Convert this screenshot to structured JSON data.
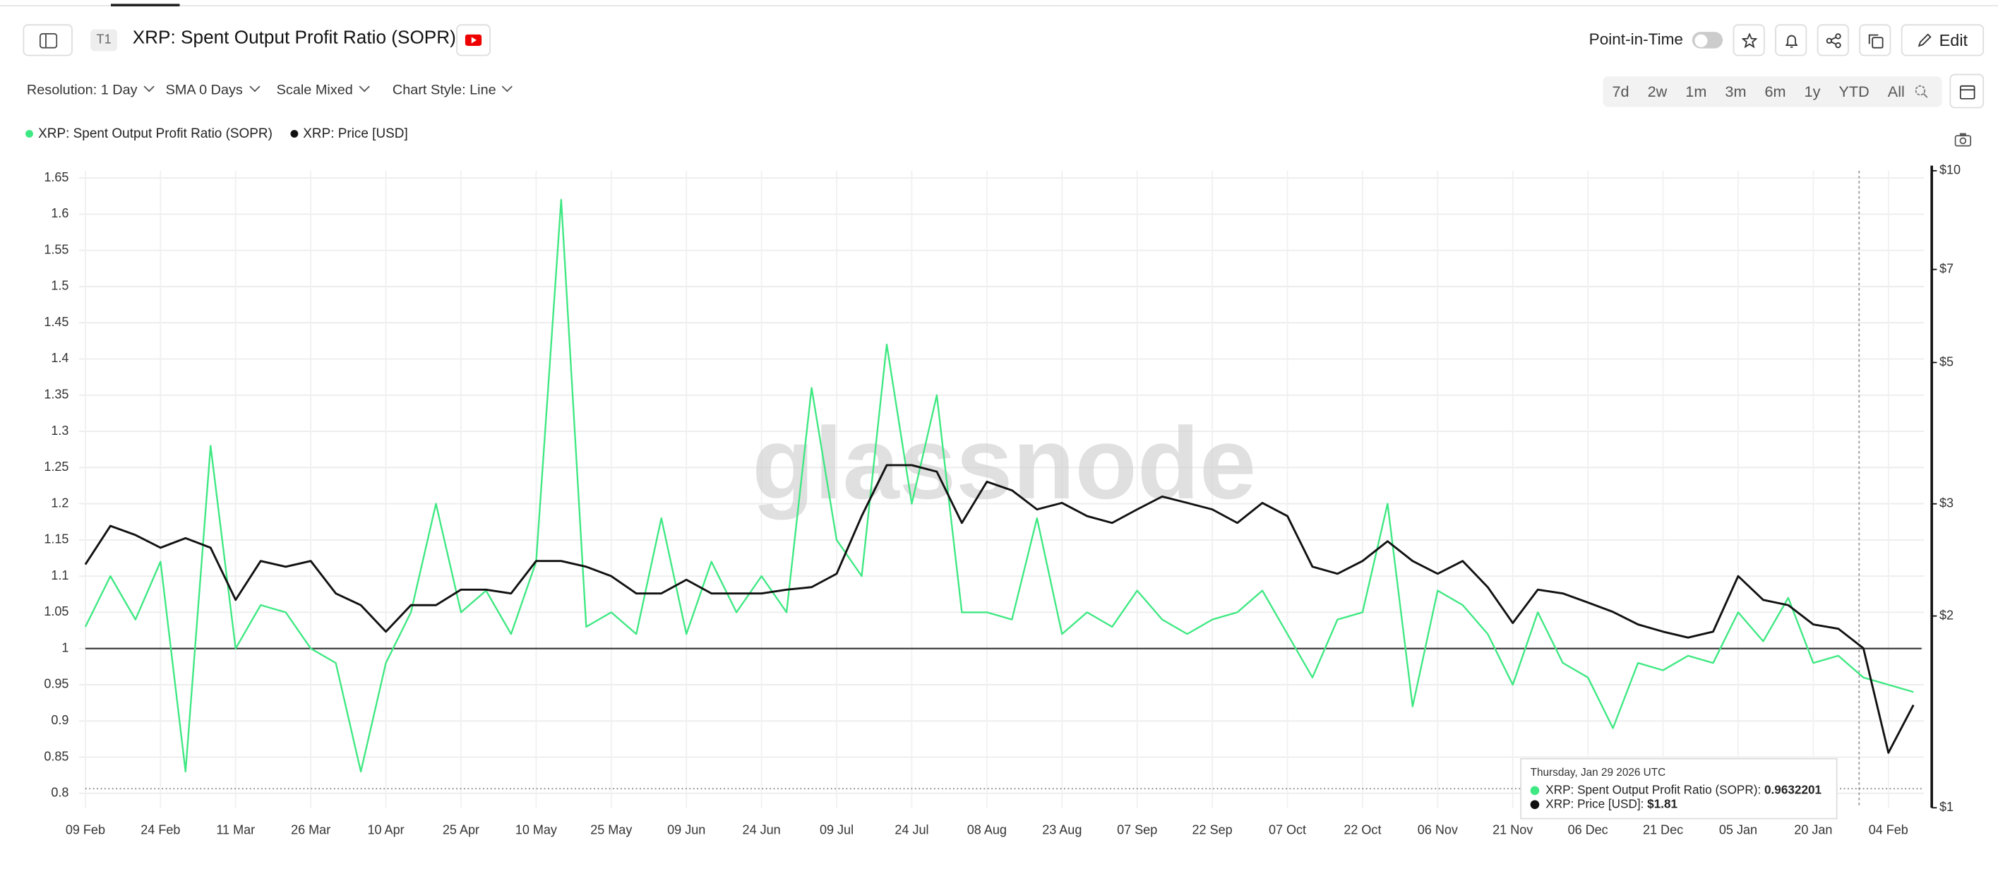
{
  "header": {
    "badge": "T1",
    "title": "XRP: Spent Output Profit Ratio (SOPR)",
    "point_in_time": "Point-in-Time",
    "edit": "Edit"
  },
  "toolbar": {
    "resolution": "Resolution: 1 Day",
    "sma": "SMA 0 Days",
    "scale": "Scale Mixed",
    "style": "Chart Style: Line"
  },
  "ranges": [
    "7d",
    "2w",
    "1m",
    "3m",
    "6m",
    "1y",
    "YTD",
    "All"
  ],
  "tooltip": {
    "date": "Thursday, Jan 29 2026 UTC",
    "rows": [
      {
        "label": "XRP: Spent Output Profit Ratio (SOPR):",
        "value": "0.9632201"
      },
      {
        "label": "XRP: Price [USD]:",
        "value": "$1.81"
      }
    ]
  },
  "chart_data": {
    "type": "line",
    "watermark": "glassnode",
    "x": [
      "09 Feb",
      "14 Feb",
      "19 Feb",
      "24 Feb",
      "01 Mar",
      "06 Mar",
      "11 Mar",
      "16 Mar",
      "21 Mar",
      "26 Mar",
      "31 Mar",
      "05 Apr",
      "10 Apr",
      "15 Apr",
      "20 Apr",
      "25 Apr",
      "30 Apr",
      "05 May",
      "10 May",
      "15 May",
      "20 May",
      "25 May",
      "30 May",
      "04 Jun",
      "09 Jun",
      "14 Jun",
      "19 Jun",
      "24 Jun",
      "29 Jun",
      "04 Jul",
      "09 Jul",
      "14 Jul",
      "19 Jul",
      "24 Jul",
      "29 Jul",
      "03 Aug",
      "08 Aug",
      "13 Aug",
      "18 Aug",
      "23 Aug",
      "28 Aug",
      "02 Sep",
      "07 Sep",
      "12 Sep",
      "17 Sep",
      "22 Sep",
      "27 Sep",
      "02 Oct",
      "07 Oct",
      "12 Oct",
      "17 Oct",
      "22 Oct",
      "27 Oct",
      "01 Nov",
      "06 Nov",
      "11 Nov",
      "16 Nov",
      "21 Nov",
      "26 Nov",
      "01 Dec",
      "06 Dec",
      "11 Dec",
      "16 Dec",
      "21 Dec",
      "26 Dec",
      "31 Dec",
      "05 Jan",
      "10 Jan",
      "15 Jan",
      "20 Jan",
      "25 Jan",
      "30 Jan",
      "04 Feb",
      "09 Feb"
    ],
    "xticks": [
      "09 Feb",
      "24 Feb",
      "11 Mar",
      "26 Mar",
      "10 Apr",
      "25 Apr",
      "10 May",
      "25 May",
      "09 Jun",
      "24 Jun",
      "09 Jul",
      "24 Jul",
      "08 Aug",
      "23 Aug",
      "07 Sep",
      "22 Sep",
      "07 Oct",
      "22 Oct",
      "06 Nov",
      "21 Nov",
      "06 Dec",
      "21 Dec",
      "05 Jan",
      "20 Jan",
      "04 Feb"
    ],
    "series": [
      {
        "name": "XRP: Spent Output Profit Ratio (SOPR)",
        "color": "#3ee882",
        "axis": "y",
        "values": [
          1.03,
          1.1,
          1.04,
          1.12,
          0.83,
          1.28,
          1.0,
          1.06,
          1.05,
          1.0,
          0.98,
          0.83,
          0.98,
          1.05,
          1.2,
          1.05,
          1.08,
          1.02,
          1.12,
          1.62,
          1.03,
          1.05,
          1.02,
          1.18,
          1.02,
          1.12,
          1.05,
          1.1,
          1.05,
          1.36,
          1.15,
          1.1,
          1.42,
          1.2,
          1.35,
          1.05,
          1.05,
          1.04,
          1.18,
          1.02,
          1.05,
          1.03,
          1.08,
          1.04,
          1.02,
          1.04,
          1.05,
          1.08,
          1.02,
          0.96,
          1.04,
          1.05,
          1.2,
          0.92,
          1.08,
          1.06,
          1.02,
          0.95,
          1.05,
          0.98,
          0.96,
          0.89,
          0.98,
          0.97,
          0.99,
          0.98,
          1.05,
          1.01,
          1.07,
          0.98,
          0.99,
          0.96,
          0.95,
          0.94
        ]
      },
      {
        "name": "XRP: Price [USD]",
        "color": "#111111",
        "axis": "y2",
        "values": [
          2.41,
          2.77,
          2.68,
          2.56,
          2.65,
          2.56,
          2.12,
          2.44,
          2.39,
          2.44,
          2.17,
          2.08,
          1.89,
          2.08,
          2.08,
          2.2,
          2.2,
          2.17,
          2.44,
          2.44,
          2.39,
          2.31,
          2.17,
          2.17,
          2.28,
          2.17,
          2.17,
          2.17,
          2.2,
          2.22,
          2.33,
          2.87,
          3.45,
          3.45,
          3.37,
          2.8,
          3.25,
          3.15,
          2.94,
          3.01,
          2.87,
          2.8,
          2.94,
          3.08,
          3.01,
          2.94,
          2.8,
          3.01,
          2.87,
          2.39,
          2.33,
          2.44,
          2.62,
          2.44,
          2.33,
          2.44,
          2.22,
          1.95,
          2.2,
          2.17,
          2.1,
          2.03,
          1.94,
          1.89,
          1.85,
          1.89,
          2.31,
          2.12,
          2.08,
          1.94,
          1.91,
          1.78,
          1.22,
          1.45
        ]
      }
    ],
    "baseline": 1,
    "ylim": [
      0.78,
      1.66
    ],
    "yticks": [
      0.8,
      0.85,
      0.9,
      0.95,
      1,
      1.05,
      1.1,
      1.15,
      1.2,
      1.25,
      1.3,
      1.35,
      1.4,
      1.45,
      1.5,
      1.55,
      1.6,
      1.65
    ],
    "y2lim": [
      1,
      10
    ],
    "y2log": true,
    "y2ticks": [
      {
        "value": 1,
        "label": "$1"
      },
      {
        "value": 2,
        "label": "$2"
      },
      {
        "value": 3,
        "label": "$3"
      },
      {
        "value": 5,
        "label": "$5"
      },
      {
        "value": 7,
        "label": "$7"
      },
      {
        "value": 10,
        "label": "$10"
      }
    ],
    "grid": true
  }
}
